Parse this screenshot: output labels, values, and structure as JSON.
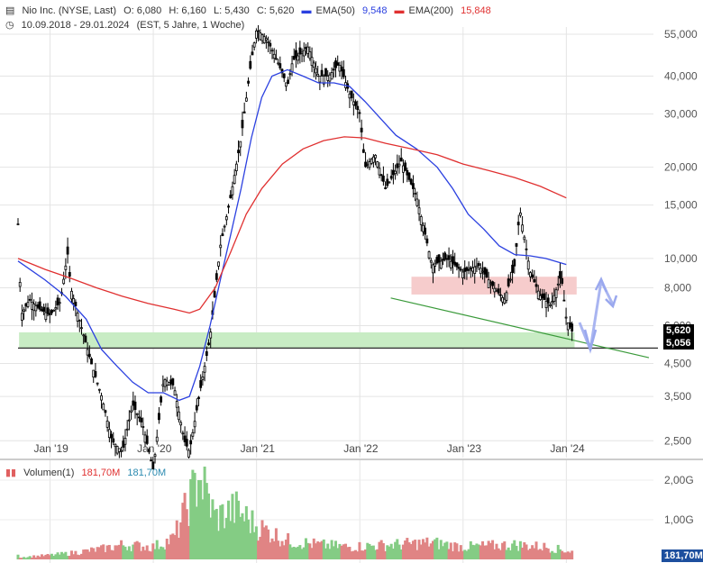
{
  "header": {
    "icon": "chart-candles-icon",
    "symbol": "Nio Inc. (NYSE, Last)",
    "open": "O: 6,080",
    "high": "H: 6,160",
    "low": "L: 5,430",
    "close": "C: 5,620",
    "ema50_label": "EMA(50)",
    "ema50_value": "9,548",
    "ema200_label": "EMA(200)",
    "ema200_value": "15,848",
    "range_icon": "clock-icon",
    "range": "10.09.2018 - 29.01.2024",
    "range_note": "(EST, 5 Jahre, 1 Woche)"
  },
  "volume_header": {
    "label": "Volumen(1)",
    "value1": "181,70M",
    "value2": "181,70M"
  },
  "colors": {
    "ema50": "#2b40e0",
    "ema200": "#e03030",
    "candle": "#000000",
    "support_zone": "#c8ecc4",
    "resistance_zone": "#f6cccc",
    "trendline": "#3a9a3a",
    "arrow": "#9aa8ee",
    "volume_up": "#84cc84",
    "volume_down": "#e08484",
    "badge_price": "#000000",
    "badge_volume": "#1d4f9e"
  },
  "badges": {
    "price_last": "5,620",
    "price_level": "5,056",
    "volume_last": "181,70M"
  },
  "chart_data": {
    "type": "candlestick",
    "scale": "log",
    "x_ticks": [
      "Jan '19",
      "Jan '20",
      "Jan '21",
      "Jan '22",
      "Jan '23",
      "Jan '24"
    ],
    "y_ticks": [
      "55,000",
      "40,000",
      "30,000",
      "20,000",
      "15,000",
      "10,000",
      "8,000",
      "6,000",
      "4,500",
      "3,500",
      "2,500"
    ],
    "volume_ticks": [
      "2,00G",
      "1,00G"
    ],
    "series": [
      {
        "name": "EMA(50)",
        "points": [
          [
            2018.69,
            9.8
          ],
          [
            2018.95,
            8.5
          ],
          [
            2019.15,
            7.5
          ],
          [
            2019.35,
            6.3
          ],
          [
            2019.5,
            5.0
          ],
          [
            2019.65,
            4.4
          ],
          [
            2019.8,
            3.9
          ],
          [
            2019.95,
            3.6
          ],
          [
            2020.1,
            3.6
          ],
          [
            2020.25,
            3.4
          ],
          [
            2020.35,
            3.5
          ],
          [
            2020.45,
            4.4
          ],
          [
            2020.55,
            6.0
          ],
          [
            2020.65,
            8.5
          ],
          [
            2020.75,
            12
          ],
          [
            2020.85,
            17
          ],
          [
            2020.95,
            25
          ],
          [
            2021.05,
            34
          ],
          [
            2021.15,
            40
          ],
          [
            2021.3,
            42
          ],
          [
            2021.45,
            40
          ],
          [
            2021.6,
            38
          ],
          [
            2021.75,
            38
          ],
          [
            2021.9,
            37
          ],
          [
            2022.05,
            33
          ],
          [
            2022.2,
            29
          ],
          [
            2022.35,
            25.5
          ],
          [
            2022.55,
            23
          ],
          [
            2022.75,
            20
          ],
          [
            2022.9,
            17
          ],
          [
            2023.05,
            14
          ],
          [
            2023.2,
            12.5
          ],
          [
            2023.35,
            11
          ],
          [
            2023.5,
            10.3
          ],
          [
            2023.65,
            10.2
          ],
          [
            2023.8,
            10.0
          ],
          [
            2024.0,
            9.548
          ]
        ]
      },
      {
        "name": "EMA(200)",
        "points": [
          [
            2018.69,
            10
          ],
          [
            2018.95,
            9.2
          ],
          [
            2019.2,
            8.6
          ],
          [
            2019.45,
            8.0
          ],
          [
            2019.7,
            7.5
          ],
          [
            2019.95,
            7.1
          ],
          [
            2020.2,
            6.8
          ],
          [
            2020.35,
            6.6
          ],
          [
            2020.45,
            6.8
          ],
          [
            2020.6,
            8.0
          ],
          [
            2020.75,
            10.5
          ],
          [
            2020.9,
            14
          ],
          [
            2021.05,
            17
          ],
          [
            2021.25,
            20.5
          ],
          [
            2021.45,
            23
          ],
          [
            2021.65,
            24.5
          ],
          [
            2021.85,
            25.2
          ],
          [
            2022.05,
            25.0
          ],
          [
            2022.25,
            24.0
          ],
          [
            2022.5,
            23.0
          ],
          [
            2022.75,
            22.0
          ],
          [
            2023.0,
            20.5
          ],
          [
            2023.25,
            19.5
          ],
          [
            2023.5,
            18.5
          ],
          [
            2023.75,
            17.3
          ],
          [
            2024.0,
            15.848
          ]
        ]
      },
      {
        "name": "Close",
        "points": [
          [
            2018.69,
            13
          ],
          [
            2018.72,
            6.5
          ],
          [
            2018.8,
            7.3
          ],
          [
            2018.9,
            6.8
          ],
          [
            2019.0,
            6.5
          ],
          [
            2019.1,
            7.2
          ],
          [
            2019.17,
            10.4
          ],
          [
            2019.2,
            8.0
          ],
          [
            2019.3,
            6.0
          ],
          [
            2019.4,
            4.5
          ],
          [
            2019.5,
            3.5
          ],
          [
            2019.6,
            2.5
          ],
          [
            2019.7,
            2.3
          ],
          [
            2019.8,
            3.3
          ],
          [
            2019.9,
            2.8
          ],
          [
            2020.0,
            2.0
          ],
          [
            2020.1,
            4.0
          ],
          [
            2020.2,
            3.8
          ],
          [
            2020.3,
            2.5
          ],
          [
            2020.35,
            2.3
          ],
          [
            2020.45,
            3.6
          ],
          [
            2020.55,
            5.5
          ],
          [
            2020.65,
            11
          ],
          [
            2020.75,
            16
          ],
          [
            2020.85,
            25
          ],
          [
            2020.95,
            45
          ],
          [
            2021.0,
            57
          ],
          [
            2021.1,
            53
          ],
          [
            2021.2,
            45
          ],
          [
            2021.3,
            37
          ],
          [
            2021.35,
            45
          ],
          [
            2021.5,
            50
          ],
          [
            2021.6,
            40
          ],
          [
            2021.7,
            40
          ],
          [
            2021.8,
            44
          ],
          [
            2021.9,
            35
          ],
          [
            2022.0,
            30
          ],
          [
            2022.05,
            20
          ],
          [
            2022.15,
            22
          ],
          [
            2022.25,
            17
          ],
          [
            2022.4,
            21
          ],
          [
            2022.55,
            16
          ],
          [
            2022.7,
            9.5
          ],
          [
            2022.85,
            10
          ],
          [
            2023.0,
            9.0
          ],
          [
            2023.15,
            9.5
          ],
          [
            2023.3,
            8.0
          ],
          [
            2023.4,
            7.3
          ],
          [
            2023.5,
            9.5
          ],
          [
            2023.55,
            14.5
          ],
          [
            2023.65,
            9.0
          ],
          [
            2023.75,
            7.5
          ],
          [
            2023.85,
            7.0
          ],
          [
            2023.95,
            8.8
          ],
          [
            2024.0,
            6.3
          ],
          [
            2024.07,
            5.62
          ]
        ]
      }
    ],
    "volume_points": [
      [
        2018.7,
        0.05
      ],
      [
        2019.0,
        0.1
      ],
      [
        2019.2,
        0.15
      ],
      [
        2019.5,
        0.25
      ],
      [
        2019.7,
        0.35
      ],
      [
        2020.0,
        0.3
      ],
      [
        2020.2,
        0.5
      ],
      [
        2020.45,
        2.0
      ],
      [
        2020.6,
        1.0
      ],
      [
        2020.8,
        1.2
      ],
      [
        2021.0,
        0.8
      ],
      [
        2021.3,
        0.45
      ],
      [
        2021.6,
        0.35
      ],
      [
        2021.9,
        0.3
      ],
      [
        2022.3,
        0.35
      ],
      [
        2022.7,
        0.4
      ],
      [
        2023.0,
        0.3
      ],
      [
        2023.5,
        0.35
      ],
      [
        2023.8,
        0.3
      ],
      [
        2024.07,
        0.18
      ]
    ],
    "levels": {
      "last_price": 5.62,
      "support_level": 5.056,
      "support_zone": [
        5.056,
        5.7
      ],
      "resistance_zone": [
        7.6,
        8.7
      ],
      "trendline": [
        [
          2022.3,
          7.4
        ],
        [
          2024.8,
          4.7
        ]
      ]
    }
  }
}
